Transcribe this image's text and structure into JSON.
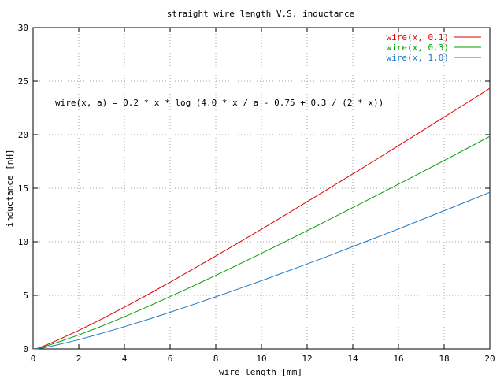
{
  "chart_data": {
    "type": "line",
    "title": "straight wire length V.S. inductance",
    "xlabel": "wire length [mm]",
    "ylabel": "inductance [nH]",
    "xlim": [
      0,
      20
    ],
    "ylim": [
      0,
      30
    ],
    "xticks": [
      0,
      2,
      4,
      6,
      8,
      10,
      12,
      14,
      16,
      18,
      20
    ],
    "yticks": [
      0,
      5,
      10,
      15,
      20,
      25,
      30
    ],
    "grid": true,
    "legend_position": "top-right",
    "annotation": "wire(x, a) = 0.2 * x * log (4.0 * x / a - 0.75 + 0.3 / (2 * x))",
    "x": [
      0.2,
      0.5,
      1,
      2,
      3,
      4,
      5,
      6,
      7,
      8,
      9,
      10,
      11,
      12,
      13,
      14,
      15,
      16,
      17,
      18,
      19,
      20
    ],
    "series": [
      {
        "name": "wire(x, 0.1)",
        "color": "#dd0000",
        "values": [
          0.05,
          0.3,
          0.75,
          1.72,
          2.78,
          3.89,
          5.04,
          6.23,
          7.44,
          8.67,
          9.91,
          11.17,
          12.45,
          13.74,
          15.03,
          16.34,
          17.65,
          18.98,
          20.31,
          21.64,
          22.98,
          24.33
        ]
      },
      {
        "name": "wire(x, 0.3)",
        "color": "#00a000",
        "values": [
          0.03,
          0.22,
          0.56,
          1.3,
          2.12,
          3.0,
          3.92,
          4.88,
          5.86,
          6.86,
          7.88,
          8.92,
          9.97,
          11.04,
          12.11,
          13.19,
          14.28,
          15.38,
          16.48,
          17.59,
          18.71,
          19.84
        ]
      },
      {
        "name": "wire(x, 1.0)",
        "color": "#1f78c8",
        "values": [
          0.01,
          0.12,
          0.35,
          0.86,
          1.45,
          2.07,
          2.73,
          3.42,
          4.13,
          4.86,
          5.6,
          6.36,
          7.14,
          7.93,
          8.73,
          9.55,
          10.37,
          11.2,
          12.05,
          12.9,
          13.76,
          14.62
        ]
      }
    ]
  }
}
